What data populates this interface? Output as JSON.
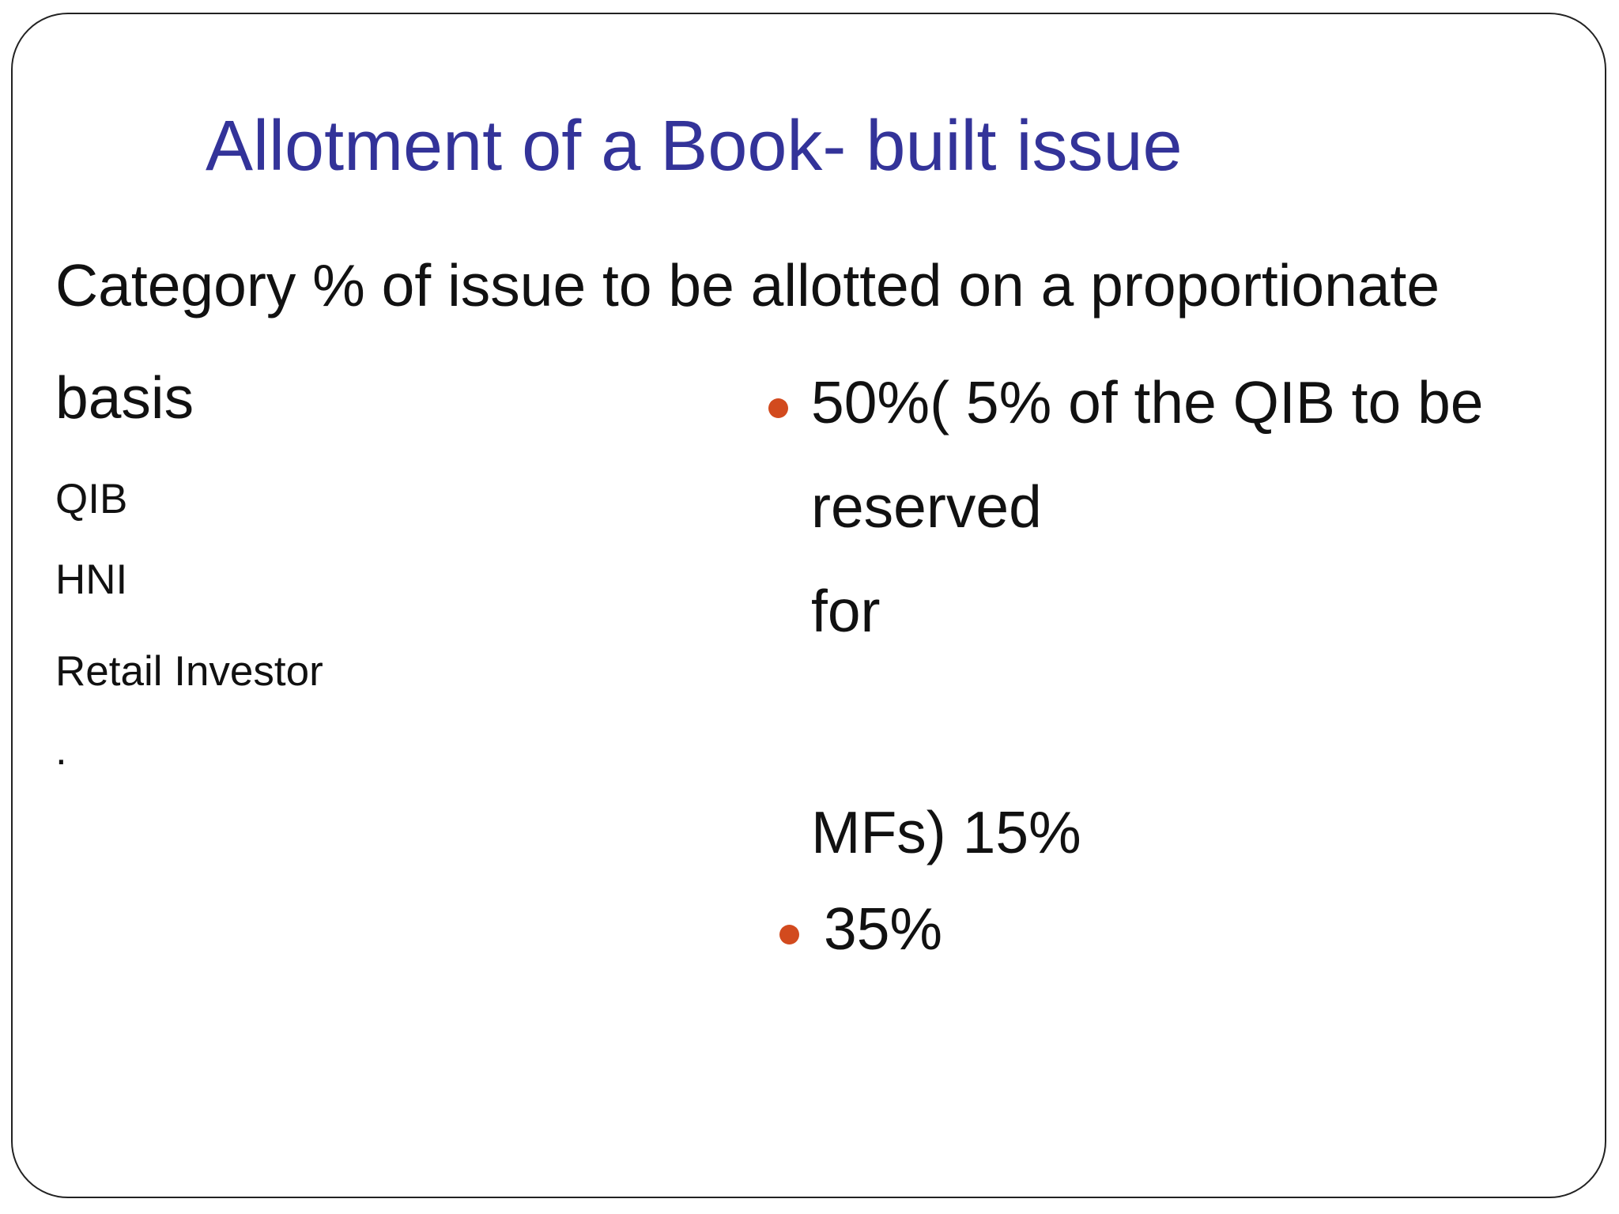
{
  "slide": {
    "title": "Allotment of a Book- built issue",
    "heading": {
      "line1": "Category % of issue to be allotted on a proportionate",
      "line2": "basis"
    },
    "categories": [
      "QIB",
      "HNI",
      "Retail Investor",
      "."
    ],
    "allotments": {
      "bullet1_lines": [
        "50%( 5% of the QIB to be",
        "reserved",
        "for",
        "MFs)  15%"
      ],
      "bullet2": "35%"
    },
    "colors": {
      "title": "#333399",
      "text": "#111111",
      "bullet": "#d24a1e",
      "border": "#222222"
    }
  }
}
